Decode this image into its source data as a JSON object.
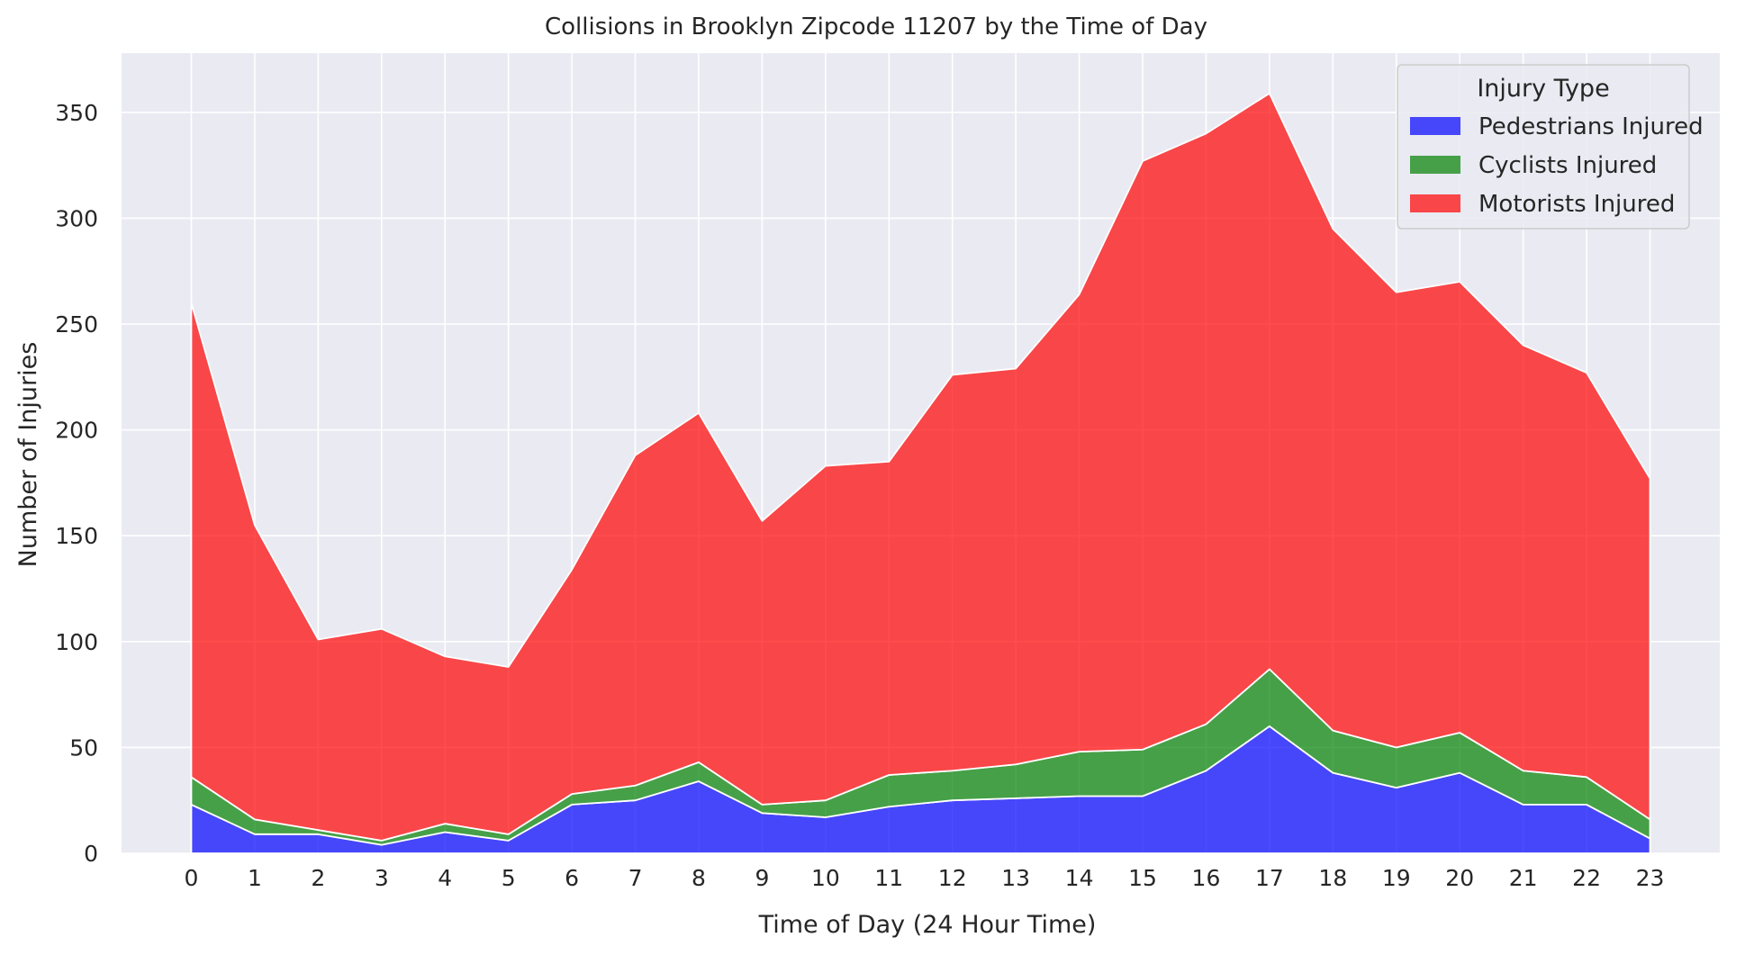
{
  "chart_data": {
    "type": "area",
    "stacked": true,
    "title": "Collisions in Brooklyn Zipcode 11207 by the Time of Day",
    "xlabel": "Time of Day (24 Hour Time)",
    "ylabel": "Number of Injuries",
    "x": [
      0,
      1,
      2,
      3,
      4,
      5,
      6,
      7,
      8,
      9,
      10,
      11,
      12,
      13,
      14,
      15,
      16,
      17,
      18,
      19,
      20,
      21,
      22,
      23
    ],
    "x_ticks": [
      "0",
      "1",
      "2",
      "3",
      "4",
      "5",
      "6",
      "7",
      "8",
      "9",
      "10",
      "11",
      "12",
      "13",
      "14",
      "15",
      "16",
      "17",
      "18",
      "19",
      "20",
      "21",
      "22",
      "23"
    ],
    "y_ticks": [
      "0",
      "50",
      "100",
      "150",
      "200",
      "250",
      "300",
      "350"
    ],
    "xlim": [
      -1.1,
      24.1
    ],
    "ylim": [
      0,
      378
    ],
    "grid": true,
    "legend": {
      "title": "Injury Type",
      "placement": "top-right"
    },
    "series": [
      {
        "name": "Pedestrians Injured",
        "color": "#0000ff",
        "values": [
          23,
          9,
          9,
          4,
          10,
          6,
          23,
          25,
          34,
          19,
          17,
          22,
          25,
          26,
          27,
          27,
          39,
          60,
          38,
          31,
          38,
          23,
          23,
          7
        ]
      },
      {
        "name": "Cyclists Injured",
        "color": "#008000",
        "values": [
          13,
          7,
          2,
          2,
          4,
          3,
          5,
          7,
          9,
          4,
          8,
          15,
          14,
          16,
          21,
          22,
          22,
          27,
          20,
          19,
          19,
          16,
          13,
          9
        ]
      },
      {
        "name": "Motorists Injured",
        "color": "#ff0000",
        "values": [
          224,
          139,
          90,
          100,
          79,
          79,
          106,
          156,
          165,
          134,
          158,
          148,
          187,
          187,
          216,
          278,
          279,
          272,
          237,
          215,
          213,
          201,
          191,
          161
        ]
      }
    ]
  }
}
